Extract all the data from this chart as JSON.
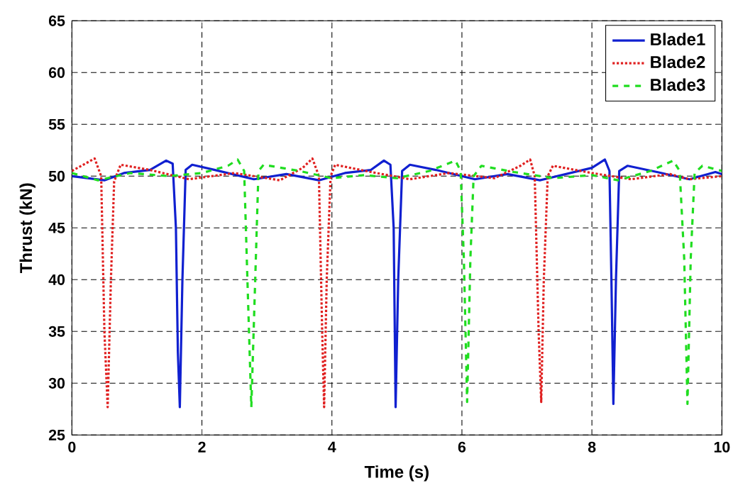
{
  "chart_data": {
    "type": "line",
    "xlabel": "Time (s)",
    "ylabel": "Thrust (kN)",
    "xlim": [
      0,
      10
    ],
    "ylim": [
      25,
      65
    ],
    "xticks": [
      0,
      2,
      4,
      6,
      8,
      10
    ],
    "yticks": [
      25,
      30,
      35,
      40,
      45,
      50,
      55,
      60,
      65
    ],
    "grid": true,
    "legend": "top right",
    "series": [
      {
        "name": "Blade1",
        "color": "#1020d0",
        "line_style": "solid",
        "x": [
          0,
          0.5,
          0.8,
          1.2,
          1.45,
          1.55,
          1.6,
          1.63,
          1.66,
          1.7,
          1.75,
          1.85,
          2.2,
          2.8,
          3.3,
          3.8,
          4.2,
          4.6,
          4.8,
          4.9,
          4.95,
          4.98,
          5.02,
          5.08,
          5.2,
          5.6,
          6.2,
          6.7,
          7.2,
          7.6,
          8.0,
          8.2,
          8.27,
          8.3,
          8.33,
          8.37,
          8.42,
          8.55,
          9.0,
          9.5,
          9.9,
          10
        ],
        "values": [
          50.0,
          49.6,
          50.3,
          50.6,
          51.5,
          51.2,
          45,
          33,
          27.7,
          40,
          50.6,
          51.1,
          50.6,
          49.7,
          50.2,
          49.6,
          50.3,
          50.6,
          51.5,
          51.1,
          45,
          27.7,
          40,
          50.5,
          51.1,
          50.6,
          49.7,
          50.2,
          49.6,
          50.2,
          50.8,
          51.6,
          50.5,
          40,
          28.0,
          40,
          50.5,
          51.0,
          50.4,
          49.7,
          50.4,
          50.2
        ]
      },
      {
        "name": "Blade2",
        "color": "#e02020",
        "line_style": "dotted",
        "x": [
          0,
          0.35,
          0.45,
          0.5,
          0.55,
          0.6,
          0.65,
          0.75,
          1.2,
          1.8,
          2.5,
          3.2,
          3.55,
          3.7,
          3.8,
          3.85,
          3.88,
          3.92,
          3.98,
          4.05,
          4.6,
          5.2,
          5.8,
          6.5,
          6.9,
          7.05,
          7.12,
          7.18,
          7.22,
          7.26,
          7.32,
          7.4,
          8.0,
          8.6,
          9.2,
          9.5,
          10
        ],
        "values": [
          50.5,
          51.7,
          50,
          35,
          27.7,
          40,
          49.5,
          51.1,
          50.6,
          49.7,
          50.3,
          49.6,
          50.8,
          51.7,
          50,
          35,
          27.7,
          40,
          50,
          51.1,
          50.4,
          49.7,
          50.3,
          49.8,
          51.0,
          51.6,
          50,
          35,
          28.2,
          40,
          50,
          51.0,
          50.3,
          49.7,
          50.2,
          49.7,
          50.0
        ]
      },
      {
        "name": "Blade3",
        "color": "#20dd20",
        "line_style": "dashed",
        "x": [
          0,
          0.4,
          0.9,
          1.5,
          2.0,
          2.4,
          2.55,
          2.65,
          2.7,
          2.76,
          2.82,
          2.87,
          2.95,
          3.5,
          4.0,
          4.5,
          5.0,
          5.5,
          5.9,
          5.98,
          6.03,
          6.08,
          6.13,
          6.18,
          6.3,
          6.8,
          7.4,
          8.0,
          8.4,
          8.9,
          9.25,
          9.35,
          9.42,
          9.47,
          9.52,
          9.58,
          9.7,
          10
        ],
        "values": [
          50.3,
          49.6,
          50.3,
          50.0,
          50.3,
          51.0,
          51.6,
          50.5,
          40,
          27.7,
          40,
          50.5,
          51.1,
          50.5,
          49.8,
          50.1,
          49.8,
          50.5,
          51.5,
          50.5,
          42,
          28.2,
          42,
          50,
          51.0,
          50.4,
          49.8,
          50.1,
          49.6,
          50.5,
          51.5,
          50.5,
          42,
          28.0,
          42,
          50.3,
          51.0,
          50.5
        ]
      }
    ]
  }
}
